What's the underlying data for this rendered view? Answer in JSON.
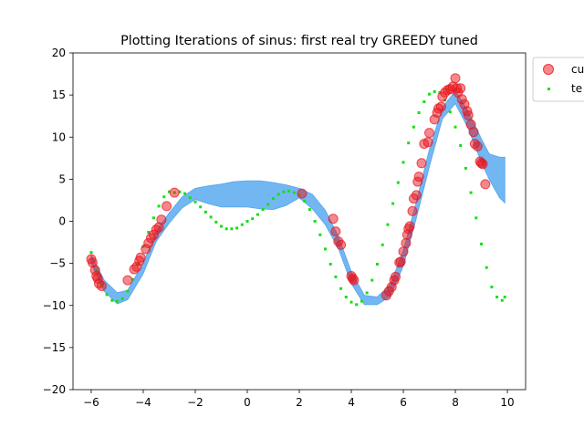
{
  "chart_data": {
    "type": "scatter",
    "title": "Plotting Iterations of sinus: first real try GREEDY tuned",
    "xlabel": "",
    "ylabel": "",
    "xlim": [
      -6.7,
      10.7
    ],
    "ylim": [
      -20,
      20
    ],
    "xticks": [
      -6,
      -4,
      -2,
      0,
      2,
      4,
      6,
      8,
      10
    ],
    "yticks": [
      -20,
      -15,
      -10,
      -5,
      0,
      5,
      10,
      15,
      20
    ],
    "grid": false,
    "legend_placement": "outside-top-right",
    "colors": {
      "current_points": "#e8141c",
      "test_points": "#14e014",
      "uncertainty_band": "#5aaaf0"
    },
    "legend": [
      {
        "label": "cu",
        "marker": "circle"
      },
      {
        "label": "te",
        "marker": "small-square"
      }
    ],
    "band": {
      "x": [
        -6.0,
        -5.5,
        -5.0,
        -4.6,
        -4.0,
        -3.5,
        -3.0,
        -2.5,
        -2.0,
        -1.5,
        -1.0,
        -0.5,
        0.0,
        0.5,
        1.0,
        1.5,
        2.0,
        2.5,
        3.0,
        3.5,
        4.0,
        4.5,
        5.0,
        5.5,
        6.0,
        6.5,
        7.0,
        7.5,
        8.0,
        8.5,
        9.0,
        9.3,
        9.7,
        9.9
      ],
      "upper": [
        -4.0,
        -7.0,
        -8.5,
        -8.2,
        -5.0,
        -1.2,
        1.0,
        2.9,
        3.9,
        4.2,
        4.4,
        4.7,
        4.8,
        4.8,
        4.6,
        4.3,
        3.9,
        3.2,
        1.3,
        -1.8,
        -6.0,
        -8.8,
        -9.0,
        -7.5,
        -3.5,
        2.3,
        8.5,
        13.5,
        15.5,
        13.0,
        9.8,
        8.0,
        7.6,
        7.6
      ],
      "lower": [
        -5.0,
        -8.3,
        -9.8,
        -9.3,
        -6.2,
        -2.4,
        -0.2,
        1.6,
        2.6,
        2.1,
        1.7,
        1.7,
        1.7,
        1.5,
        1.4,
        1.9,
        2.8,
        1.5,
        -0.4,
        -3.2,
        -7.4,
        -9.9,
        -9.9,
        -8.9,
        -5.3,
        0.4,
        6.5,
        12.2,
        14.0,
        11.0,
        7.0,
        5.0,
        2.8,
        2.2
      ]
    },
    "series": [
      {
        "name": "cu",
        "x": [
          -6.0,
          -5.95,
          -5.85,
          -5.8,
          -5.75,
          -5.7,
          -5.6,
          -4.6,
          -4.35,
          -4.25,
          -4.15,
          -4.1,
          -3.9,
          -3.8,
          -3.7,
          -3.6,
          -3.5,
          -3.4,
          -3.3,
          -3.1,
          -2.8,
          2.1,
          3.3,
          3.4,
          3.5,
          3.6,
          4.0,
          4.05,
          4.1,
          5.35,
          5.45,
          5.55,
          5.65,
          5.7,
          5.85,
          5.9,
          6.0,
          6.1,
          6.15,
          6.2,
          6.25,
          6.35,
          6.4,
          6.5,
          6.55,
          6.6,
          6.7,
          6.8,
          6.95,
          7.0,
          7.2,
          7.3,
          7.35,
          7.45,
          7.5,
          7.6,
          7.7,
          7.8,
          7.9,
          8.0,
          8.05,
          8.1,
          8.2,
          8.25,
          8.35,
          8.45,
          8.5,
          8.6,
          8.7,
          8.75,
          8.85,
          8.95,
          9.0,
          9.05,
          9.15
        ],
        "y": [
          -4.5,
          -4.9,
          -5.8,
          -6.5,
          -6.8,
          -7.4,
          -7.7,
          -7.0,
          -5.7,
          -5.4,
          -4.7,
          -4.3,
          -3.3,
          -2.6,
          -2.0,
          -1.6,
          -1.0,
          -0.7,
          0.2,
          1.8,
          3.4,
          3.3,
          0.3,
          -1.2,
          -2.4,
          -2.8,
          -6.5,
          -6.8,
          -7.0,
          -8.8,
          -8.3,
          -7.8,
          -7.0,
          -6.6,
          -4.9,
          -4.8,
          -3.6,
          -2.6,
          -1.6,
          -0.9,
          -0.6,
          1.2,
          2.7,
          3.1,
          4.7,
          5.3,
          6.9,
          9.2,
          9.4,
          10.5,
          12.1,
          12.9,
          13.4,
          13.6,
          14.8,
          15.3,
          15.6,
          15.7,
          16.0,
          17.0,
          15.8,
          15.3,
          15.8,
          14.5,
          13.9,
          13.1,
          12.6,
          11.5,
          10.6,
          9.2,
          8.9,
          7.1,
          6.9,
          6.8,
          4.4
        ]
      },
      {
        "name": "te",
        "x": [
          -6.0,
          -5.8,
          -5.6,
          -5.4,
          -5.2,
          -5.0,
          -4.8,
          -4.6,
          -4.4,
          -4.2,
          -4.0,
          -3.8,
          -3.6,
          -3.4,
          -3.2,
          -3.0,
          -2.8,
          -2.6,
          -2.4,
          -2.2,
          -2.0,
          -1.8,
          -1.6,
          -1.4,
          -1.2,
          -1.0,
          -0.8,
          -0.6,
          -0.4,
          -0.2,
          0.0,
          0.2,
          0.4,
          0.6,
          0.8,
          1.0,
          1.2,
          1.4,
          1.6,
          1.8,
          2.0,
          2.2,
          2.4,
          2.6,
          2.8,
          3.0,
          3.2,
          3.4,
          3.6,
          3.8,
          4.0,
          4.2,
          4.4,
          4.6,
          4.8,
          5.0,
          5.2,
          5.4,
          5.6,
          5.8,
          6.0,
          6.2,
          6.4,
          6.6,
          6.8,
          7.0,
          7.2,
          7.4,
          7.6,
          7.8,
          8.0,
          8.2,
          8.4,
          8.6,
          8.8,
          9.0,
          9.2,
          9.4,
          9.6,
          9.8,
          9.9
        ],
        "y": [
          -3.7,
          -5.9,
          -7.6,
          -8.7,
          -9.4,
          -9.5,
          -9.2,
          -8.3,
          -6.9,
          -5.1,
          -3.0,
          -1.3,
          0.4,
          1.8,
          2.9,
          3.5,
          3.4,
          3.5,
          3.3,
          2.8,
          2.3,
          1.7,
          1.1,
          0.5,
          -0.1,
          -0.6,
          -0.9,
          -0.9,
          -0.8,
          -0.4,
          0.0,
          0.3,
          0.8,
          1.4,
          2.0,
          2.7,
          3.2,
          3.5,
          3.6,
          3.4,
          3.1,
          2.4,
          1.4,
          0.0,
          -1.6,
          -3.3,
          -5.1,
          -6.6,
          -8.0,
          -9.0,
          -9.6,
          -9.9,
          -9.5,
          -8.5,
          -7.0,
          -5.1,
          -2.8,
          -0.4,
          2.1,
          4.6,
          7.0,
          9.3,
          11.2,
          12.9,
          14.2,
          15.1,
          15.4,
          15.3,
          14.4,
          13.0,
          11.2,
          9.0,
          6.3,
          3.4,
          0.4,
          -2.7,
          -5.5,
          -7.8,
          -9.0,
          -9.4,
          -9.0
        ]
      }
    ]
  }
}
